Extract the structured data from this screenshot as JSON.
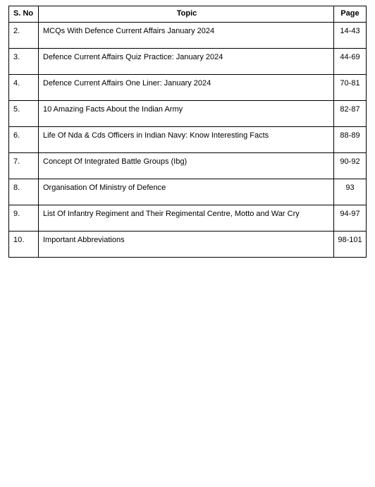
{
  "table": {
    "headers": {
      "sno": "S. No",
      "topic": "Topic",
      "page": "Page"
    },
    "rows": [
      {
        "sno": "2.",
        "topic": "MCQs With Defence Current Affairs January 2024",
        "page": "14-43"
      },
      {
        "sno": "3.",
        "topic": "Defence Current Affairs Quiz Practice: January 2024",
        "page": "44-69"
      },
      {
        "sno": "4.",
        "topic": "Defence Current Affairs One Liner: January 2024",
        "page": "70-81"
      },
      {
        "sno": "5.",
        "topic": "10 Amazing Facts About the Indian Army",
        "page": "82-87"
      },
      {
        "sno": "6.",
        "topic": "Life Of Nda & Cds Officers in Indian Navy: Know Interesting Facts",
        "page": "88-89"
      },
      {
        "sno": "7.",
        "topic": "Concept Of Integrated Battle Groups (Ibg)",
        "page": "90-92"
      },
      {
        "sno": "8.",
        "topic": "Organisation Of Ministry of Defence",
        "page": "93"
      },
      {
        "sno": "9.",
        "topic": "List Of Infantry Regiment and Their Regimental Centre, Motto and War Cry",
        "page": "94-97"
      },
      {
        "sno": "10.",
        "topic": "Important Abbreviations",
        "page": "98-101"
      }
    ]
  },
  "style": {
    "border_color": "#000000",
    "background": "#ffffff",
    "font_family": "Arial",
    "font_size_pt": 11,
    "col_widths": {
      "sno": 42,
      "page": 46
    }
  }
}
